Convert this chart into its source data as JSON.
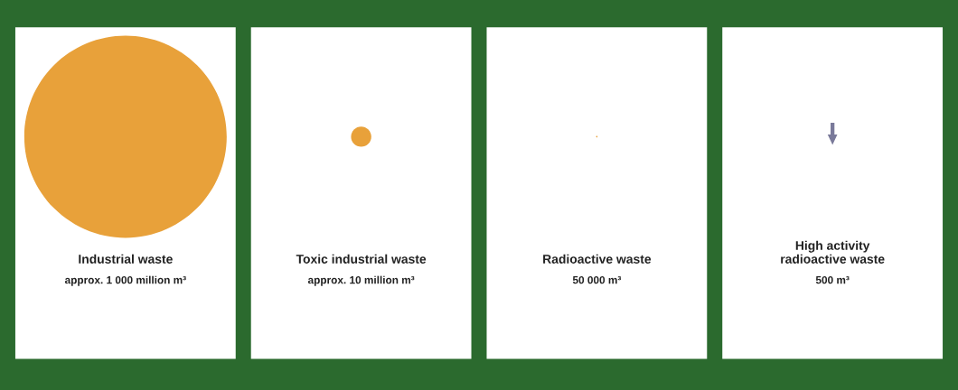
{
  "chart_data": {
    "type": "other",
    "categories": [
      "Industrial waste",
      "Toxic industrial waste",
      "Radioactive waste",
      "High activity\nradioactive waste"
    ],
    "values": [
      1000000000,
      10000000,
      50000,
      500
    ],
    "value_labels": [
      "approx. 1 000 million m³",
      "approx. 10 million m³",
      "50 000 m³",
      "500 m³"
    ]
  }
}
